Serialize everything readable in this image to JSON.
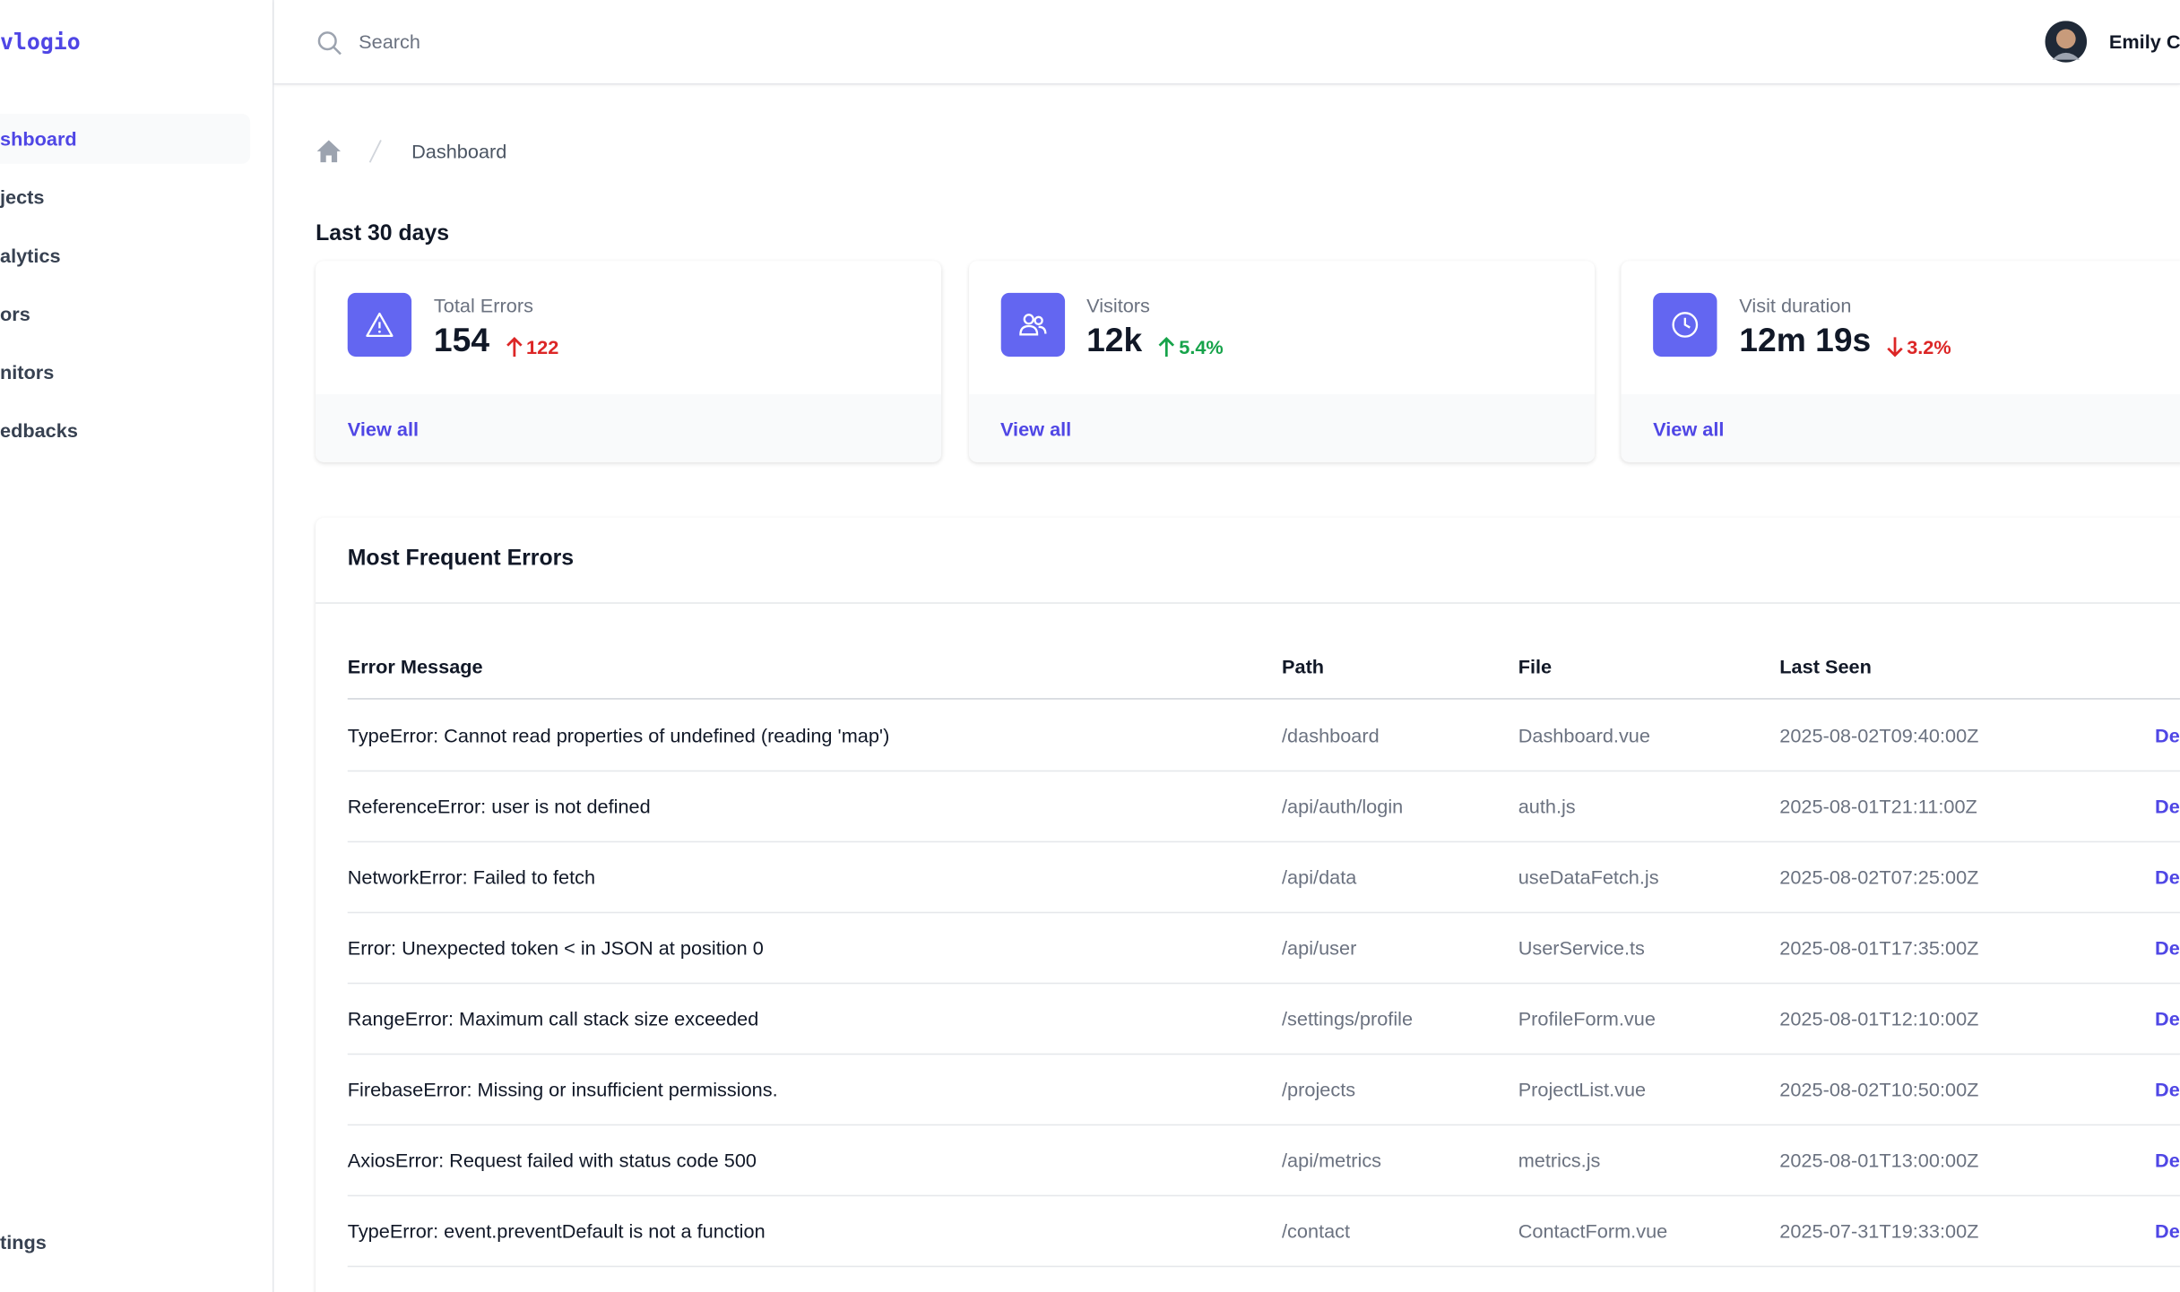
{
  "sidebar": {
    "logo": "vlogio",
    "nav": [
      "shboard",
      "jects",
      "alytics",
      "ors",
      "nitors",
      "edbacks"
    ],
    "active": 0,
    "footer": "tings"
  },
  "topbar": {
    "search_placeholder": "Search",
    "user": "Emily Cl"
  },
  "breadcrumb": {
    "current": "Dashboard"
  },
  "stats": {
    "title": "Last 30 days",
    "cards": [
      {
        "label": "Total Errors",
        "value": "154",
        "change": "122",
        "trend": "up",
        "color": "red",
        "link": "View all"
      },
      {
        "label": "Visitors",
        "value": "12k",
        "change": "5.4%",
        "trend": "up",
        "color": "green",
        "link": "View all"
      },
      {
        "label": "Visit duration",
        "value": "12m 19s",
        "change": "3.2%",
        "trend": "down",
        "color": "red",
        "link": "View all"
      }
    ]
  },
  "table": {
    "title": "Most Frequent Errors",
    "columns": [
      "Error Message",
      "Path",
      "File",
      "Last Seen"
    ],
    "rows": [
      [
        "TypeError: Cannot read properties of undefined (reading 'map')",
        "/dashboard",
        "Dashboard.vue",
        "2025-08-02T09:40:00Z",
        "De"
      ],
      [
        "ReferenceError: user is not defined",
        "/api/auth/login",
        "auth.js",
        "2025-08-01T21:11:00Z",
        "De"
      ],
      [
        "NetworkError: Failed to fetch",
        "/api/data",
        "useDataFetch.js",
        "2025-08-02T07:25:00Z",
        "De"
      ],
      [
        "Error: Unexpected token < in JSON at position 0",
        "/api/user",
        "UserService.ts",
        "2025-08-01T17:35:00Z",
        "De"
      ],
      [
        "RangeError: Maximum call stack size exceeded",
        "/settings/profile",
        "ProfileForm.vue",
        "2025-08-01T12:10:00Z",
        "De"
      ],
      [
        "FirebaseError: Missing or insufficient permissions.",
        "/projects",
        "ProjectList.vue",
        "2025-08-02T10:50:00Z",
        "De"
      ],
      [
        "AxiosError: Request failed with status code 500",
        "/api/metrics",
        "metrics.js",
        "2025-08-01T13:00:00Z",
        "De"
      ],
      [
        "TypeError: event.preventDefault is not a function",
        "/contact",
        "ContactForm.vue",
        "2025-07-31T19:33:00Z",
        "De"
      ]
    ]
  }
}
